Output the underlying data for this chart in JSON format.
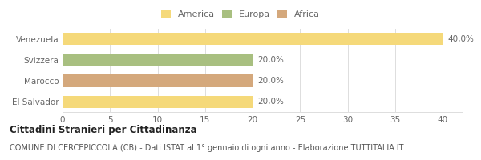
{
  "categories": [
    "El Salvador",
    "Marocco",
    "Svizzera",
    "Venezuela"
  ],
  "values": [
    20,
    20,
    20,
    40
  ],
  "bar_color_map": {
    "El Salvador": "#f5d97a",
    "Marocco": "#d4a87c",
    "Svizzera": "#a8bf80",
    "Venezuela": "#f5d97a"
  },
  "legend_items": [
    {
      "label": "America",
      "color": "#f5d97a"
    },
    {
      "label": "Europa",
      "color": "#a8bf80"
    },
    {
      "label": "Africa",
      "color": "#d4a87c"
    }
  ],
  "bar_labels": [
    "20,0%",
    "20,0%",
    "20,0%",
    "40,0%"
  ],
  "xlim": [
    0,
    42
  ],
  "xticks": [
    0,
    5,
    10,
    15,
    20,
    25,
    30,
    35,
    40
  ],
  "title": "Cittadini Stranieri per Cittadinanza",
  "subtitle": "COMUNE DI CERCEPICCOLA (CB) - Dati ISTAT al 1° gennaio di ogni anno - Elaborazione TUTTITALIA.IT",
  "bg_color": "#ffffff",
  "grid_color": "#dddddd",
  "title_fontsize": 8.5,
  "subtitle_fontsize": 7,
  "bar_label_fontsize": 7.5,
  "tick_fontsize": 7.5,
  "legend_fontsize": 8,
  "ylabel_color": "#555555",
  "tick_color": "#666666"
}
